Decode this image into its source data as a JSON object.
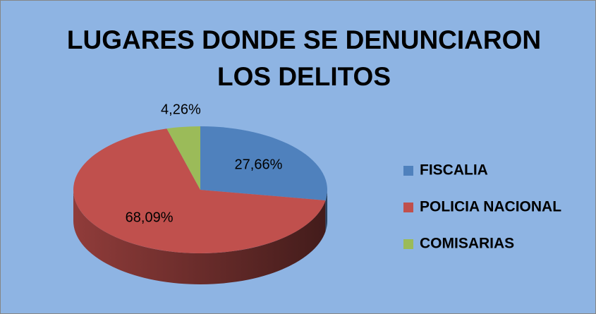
{
  "chart_data": {
    "type": "pie",
    "title": "LUGARES DONDE SE DENUNCIARON LOS DELITOS",
    "categories": [
      "FISCALIA",
      "POLICIA NACIONAL",
      "COMISARIAS"
    ],
    "values": [
      27.66,
      68.09,
      4.26
    ],
    "value_labels": [
      "27,66%",
      "68,09%",
      "4,26%"
    ],
    "colors": [
      "#4f81bd",
      "#c0504d",
      "#9bbb59"
    ],
    "legend": "right"
  }
}
